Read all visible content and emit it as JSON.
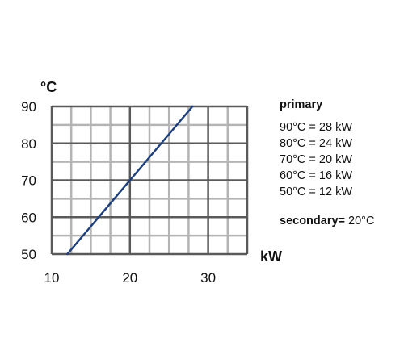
{
  "chart_data": {
    "type": "line",
    "title": "",
    "xlabel": "kW",
    "ylabel": "°C",
    "xlim": [
      10,
      35
    ],
    "ylim": [
      50,
      90
    ],
    "x_ticks": [
      "10",
      "20",
      "30"
    ],
    "y_ticks": [
      "50",
      "60",
      "70",
      "80",
      "90"
    ],
    "grid": true,
    "series": [
      {
        "x": [
          12,
          16,
          20,
          24,
          28
        ],
        "y": [
          50,
          60,
          70,
          80,
          90
        ]
      }
    ],
    "line_color": "#1f3f7a"
  },
  "legend": {
    "heading": "primary",
    "entries": [
      "90°C = 28 kW",
      "80°C = 24 kW",
      "70°C = 20 kW",
      "60°C = 16 kW",
      "50°C = 12 kW"
    ],
    "secondary_label": "secondary=",
    "secondary_value": " 20°C"
  }
}
